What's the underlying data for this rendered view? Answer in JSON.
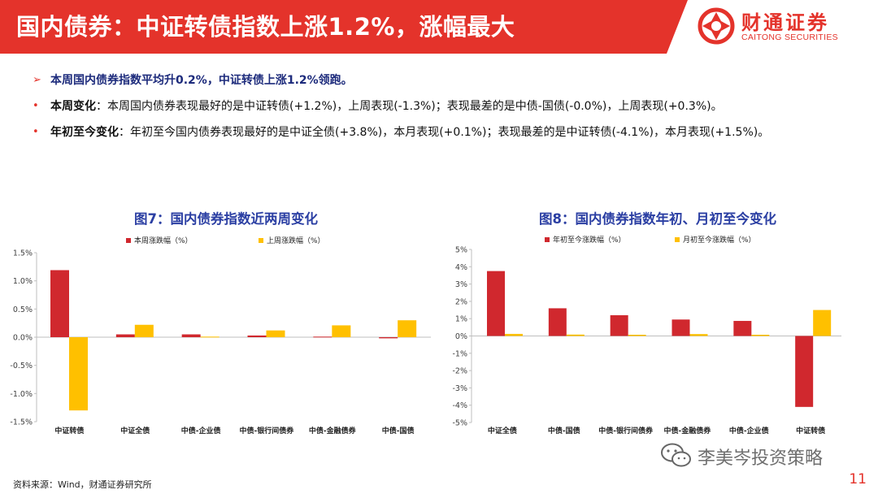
{
  "header": {
    "title": "国内债券：中证转债指数上涨1.2%，涨幅最大",
    "logo_cn": "财通证券",
    "logo_en": "CAITONG SECURITIES"
  },
  "bullets": {
    "lead": "本周国内债券指数平均升0.2%，中证转债上涨1.2%领跑。",
    "week_label": "本周变化",
    "week_text": "：本周国内债券表现最好的是中证转债(+1.2%)，上周表现(-1.3%)；表现最差的是中债-国债(-0.0%)，上周表现(+0.3%)。",
    "ytd_label": "年初至今变化",
    "ytd_text": "：年初至今国内债券表现最好的是中证全债(+3.8%)，本月表现(+0.1%)；表现最差的是中证转债(-4.1%)，本月表现(+1.5%)。"
  },
  "chart_data": [
    {
      "type": "bar",
      "title": "图7：国内债券指数近两周变化",
      "categories": [
        "中证转债",
        "中证全债",
        "中债-企业债",
        "中债-银行间债券",
        "中债-金融债券",
        "中债-国债"
      ],
      "series": [
        {
          "name": "本周涨跌幅（%）",
          "color": "#d0282e",
          "values": [
            1.19,
            0.05,
            0.05,
            0.03,
            0.01,
            -0.02
          ]
        },
        {
          "name": "上周涨跌幅（%）",
          "color": "#ffc000",
          "values": [
            -1.3,
            0.22,
            0.01,
            0.12,
            0.21,
            0.3
          ]
        }
      ],
      "ylim": [
        -1.5,
        1.5
      ],
      "yticks": [
        -1.5,
        -1.0,
        -0.5,
        0.0,
        0.5,
        1.0,
        1.5
      ],
      "ytick_labels": [
        "-1.5%",
        "-1.0%",
        "-0.5%",
        "0.0%",
        "0.5%",
        "1.0%",
        "1.5%"
      ],
      "legend": "top"
    },
    {
      "type": "bar",
      "title": "图8：国内债券指数年初、月初至今变化",
      "categories": [
        "中证全债",
        "中债-国债",
        "中债-银行间债券",
        "中债-金融债券",
        "中债-企业债",
        "中证转债"
      ],
      "series": [
        {
          "name": "年初至今涨跌幅（%）",
          "color": "#d0282e",
          "values": [
            3.75,
            1.6,
            1.2,
            0.95,
            0.87,
            -4.1
          ]
        },
        {
          "name": "月初至今涨跌幅（%）",
          "color": "#ffc000",
          "values": [
            0.12,
            0.08,
            0.07,
            0.11,
            0.07,
            1.5
          ]
        }
      ],
      "ylim": [
        -5,
        5
      ],
      "yticks": [
        -5,
        -4,
        -3,
        -2,
        -1,
        0,
        1,
        2,
        3,
        4,
        5
      ],
      "ytick_labels": [
        "-5%",
        "-4%",
        "-3%",
        "-2%",
        "-1%",
        "0%",
        "1%",
        "2%",
        "3%",
        "4%",
        "5%"
      ],
      "legend": "top"
    }
  ],
  "footer": {
    "source": "资料来源：Wind，财通证券研究所",
    "page": "11",
    "watermark": "李美岑投资策略",
    "wechat_icon": "wechat-icon"
  }
}
